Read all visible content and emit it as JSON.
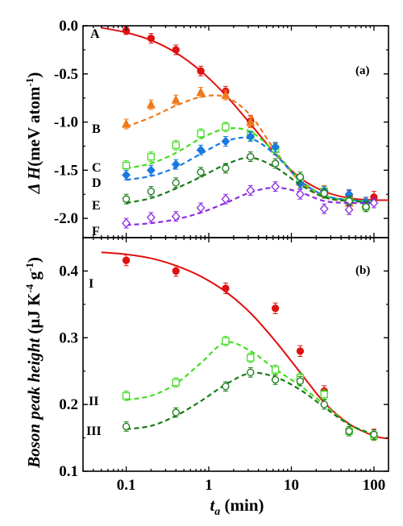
{
  "chart_data": [
    {
      "type": "scatter",
      "panel_label": "(a)",
      "ylabel": {
        "main": "Δ H",
        "unit_pre": "(meV atom",
        "unit_sup": "-1",
        "unit_post": ")"
      },
      "xscale": "log",
      "xlim": [
        0.03,
        150
      ],
      "ylim": [
        -2.2,
        0.0
      ],
      "yticks": [
        0.0,
        -0.5,
        -1.0,
        -1.5,
        -2.0
      ],
      "ytick_labels": [
        "0.0",
        "-0.5",
        "-1.0",
        "-1.5",
        "-2.0"
      ],
      "series": [
        {
          "name": "A",
          "color": "#e01010",
          "marker": "circle",
          "filled": true,
          "line": "solid",
          "x": [
            0.1,
            0.2,
            0.4,
            0.8,
            1.6,
            3.2,
            6.4,
            12.8,
            25,
            50,
            100
          ],
          "y": [
            -0.05,
            -0.13,
            -0.25,
            -0.47,
            -0.68,
            -0.99,
            -1.28,
            -1.6,
            -1.72,
            -1.77,
            -1.78
          ],
          "err": [
            0.04,
            0.05,
            0.05,
            0.05,
            0.05,
            0.06,
            0.06,
            0.06,
            0.06,
            0.06,
            0.06
          ],
          "fit_x": [
            0.05,
            0.1,
            0.2,
            0.4,
            0.8,
            1.6,
            3.2,
            6.4,
            12.8,
            25,
            50,
            100,
            150
          ],
          "fit_y": [
            -0.02,
            -0.07,
            -0.15,
            -0.28,
            -0.47,
            -0.72,
            -1.02,
            -1.33,
            -1.58,
            -1.72,
            -1.79,
            -1.81,
            -1.81
          ]
        },
        {
          "name": "B",
          "color": "#f07818",
          "marker": "triangle",
          "filled": true,
          "line": "dashed",
          "x": [
            0.1,
            0.2,
            0.4,
            0.8,
            1.6,
            3.2,
            6.4,
            12.8,
            25,
            50,
            80
          ],
          "y": [
            -1.02,
            -0.82,
            -0.77,
            -0.69,
            -0.72,
            -1.0,
            -1.28,
            -1.62,
            -1.72,
            -1.84,
            -1.85
          ],
          "err": [
            0.05,
            0.05,
            0.05,
            0.05,
            0.05,
            0.06,
            0.06,
            0.06,
            0.06,
            0.06,
            0.06
          ],
          "fit_x": [
            0.1,
            0.2,
            0.4,
            0.8,
            1.6,
            3.2,
            6.4,
            12.8,
            25,
            50,
            100
          ],
          "fit_y": [
            -1.05,
            -0.95,
            -0.83,
            -0.74,
            -0.74,
            -0.93,
            -1.3,
            -1.62,
            -1.78,
            -1.82,
            -1.83
          ]
        },
        {
          "name": "C",
          "color": "#44dd22",
          "marker": "square",
          "filled": false,
          "line": "dashed",
          "x": [
            0.1,
            0.2,
            0.4,
            0.8,
            1.6,
            3.2,
            6.4,
            12.8,
            25,
            50,
            80
          ],
          "y": [
            -1.45,
            -1.36,
            -1.24,
            -1.12,
            -1.05,
            -1.14,
            -1.28,
            -1.6,
            -1.72,
            -1.82,
            -1.88
          ],
          "err": [
            0.05,
            0.05,
            0.05,
            0.05,
            0.05,
            0.05,
            0.05,
            0.05,
            0.05,
            0.05,
            0.05
          ],
          "fit_x": [
            0.1,
            0.2,
            0.4,
            0.8,
            1.6,
            3.2,
            6.4,
            12.8,
            25,
            50,
            100
          ],
          "fit_y": [
            -1.48,
            -1.43,
            -1.32,
            -1.17,
            -1.07,
            -1.1,
            -1.32,
            -1.6,
            -1.76,
            -1.81,
            -1.82
          ]
        },
        {
          "name": "D",
          "color": "#1a7ae0",
          "marker": "diamond",
          "filled": true,
          "line": "dashed",
          "x": [
            0.1,
            0.2,
            0.4,
            0.8,
            1.6,
            3.2,
            6.4,
            12.8,
            25,
            50,
            80
          ],
          "y": [
            -1.55,
            -1.5,
            -1.44,
            -1.29,
            -1.2,
            -1.15,
            -1.26,
            -1.64,
            -1.72,
            -1.75,
            -1.83
          ],
          "err": [
            0.05,
            0.05,
            0.05,
            0.05,
            0.05,
            0.05,
            0.05,
            0.05,
            0.05,
            0.05,
            0.05
          ],
          "fit_x": [
            0.1,
            0.2,
            0.4,
            0.8,
            1.6,
            3.2,
            6.4,
            12.8,
            25,
            50,
            100
          ],
          "fit_y": [
            -1.6,
            -1.56,
            -1.47,
            -1.33,
            -1.2,
            -1.17,
            -1.34,
            -1.61,
            -1.76,
            -1.81,
            -1.82
          ]
        },
        {
          "name": "E",
          "color": "#177a17",
          "marker": "circle",
          "filled": false,
          "line": "dashed",
          "x": [
            0.1,
            0.2,
            0.4,
            0.8,
            1.6,
            3.2,
            6.4,
            12.8,
            25,
            50,
            80
          ],
          "y": [
            -1.8,
            -1.72,
            -1.63,
            -1.52,
            -1.48,
            -1.36,
            -1.43,
            -1.57,
            -1.74,
            -1.82,
            -1.88
          ],
          "err": [
            0.05,
            0.05,
            0.05,
            0.05,
            0.05,
            0.05,
            0.05,
            0.05,
            0.05,
            0.05,
            0.05
          ],
          "fit_x": [
            0.1,
            0.2,
            0.4,
            0.8,
            1.6,
            3.2,
            6.4,
            12.8,
            25,
            50,
            100
          ],
          "fit_y": [
            -1.84,
            -1.79,
            -1.69,
            -1.57,
            -1.44,
            -1.37,
            -1.47,
            -1.65,
            -1.78,
            -1.82,
            -1.83
          ]
        },
        {
          "name": "F",
          "color": "#8a2be2",
          "marker": "diamond",
          "filled": false,
          "line": "dashed",
          "x": [
            0.1,
            0.2,
            0.4,
            0.8,
            1.6,
            3.2,
            6.4,
            12.8,
            25,
            50,
            100
          ],
          "y": [
            -2.05,
            -1.99,
            -1.98,
            -1.89,
            -1.8,
            -1.71,
            -1.67,
            -1.75,
            -1.9,
            -1.91,
            -1.84
          ],
          "err": [
            0.05,
            0.05,
            0.05,
            0.05,
            0.05,
            0.05,
            0.05,
            0.05,
            0.05,
            0.05,
            0.05
          ],
          "fit_x": [
            0.1,
            0.2,
            0.4,
            0.8,
            1.6,
            3.2,
            6.4,
            12.8,
            25,
            50,
            100
          ],
          "fit_y": [
            -2.07,
            -2.05,
            -2.01,
            -1.94,
            -1.84,
            -1.73,
            -1.68,
            -1.73,
            -1.82,
            -1.84,
            -1.84
          ]
        }
      ]
    },
    {
      "type": "scatter",
      "panel_label": "(b)",
      "ylabel": {
        "main": "Boson peak height",
        "unit_pre": " (μJ K",
        "unit_sup": "-4",
        "unit_mid": " g",
        "unit_sup2": "-1",
        "unit_post": ")"
      },
      "xlabel": {
        "main": "t",
        "sub": "a",
        "unit": " (min)"
      },
      "xscale": "log",
      "xlim": [
        0.03,
        150
      ],
      "ylim": [
        0.1,
        0.45
      ],
      "yticks": [
        0.1,
        0.2,
        0.3,
        0.4
      ],
      "ytick_labels": [
        "0.1",
        "0.2",
        "0.3",
        "0.4"
      ],
      "xticks": [
        0.1,
        1,
        10,
        100
      ],
      "xtick_labels": [
        "0.1",
        "1",
        "10",
        "100"
      ],
      "series": [
        {
          "name": "I",
          "color": "#e01010",
          "marker": "circle",
          "filled": true,
          "line": "solid",
          "x": [
            0.1,
            0.4,
            1.6,
            6.4,
            12.8,
            25,
            100
          ],
          "y": [
            0.416,
            0.4,
            0.374,
            0.344,
            0.28,
            0.22,
            0.155
          ],
          "err": [
            0.008,
            0.008,
            0.008,
            0.008,
            0.008,
            0.008,
            0.008
          ],
          "fit_x": [
            0.05,
            0.1,
            0.2,
            0.4,
            0.8,
            1.6,
            3.2,
            6.4,
            12.8,
            25,
            50,
            100,
            150
          ],
          "fit_y": [
            0.428,
            0.425,
            0.419,
            0.408,
            0.392,
            0.369,
            0.337,
            0.295,
            0.248,
            0.203,
            0.171,
            0.153,
            0.149
          ]
        },
        {
          "name": "II",
          "color": "#44dd22",
          "marker": "square",
          "filled": false,
          "line": "dashed",
          "x": [
            0.1,
            0.4,
            1.6,
            3.2,
            6.4,
            12.8,
            25,
            50,
            100
          ],
          "y": [
            0.213,
            0.233,
            0.295,
            0.27,
            0.252,
            0.24,
            0.215,
            0.16,
            0.153
          ],
          "err": [
            0.007,
            0.007,
            0.007,
            0.007,
            0.007,
            0.007,
            0.007,
            0.007,
            0.007
          ],
          "fit_x": [
            0.1,
            0.2,
            0.4,
            0.8,
            1.6,
            3.2,
            6.4,
            12.8,
            25,
            50,
            100
          ],
          "fit_y": [
            0.207,
            0.213,
            0.231,
            0.262,
            0.293,
            0.28,
            0.253,
            0.228,
            0.2,
            0.17,
            0.154
          ]
        },
        {
          "name": "III",
          "color": "#177a17",
          "marker": "circle",
          "filled": false,
          "line": "dashed",
          "x": [
            0.1,
            0.4,
            1.6,
            3.2,
            6.4,
            12.8,
            25,
            50,
            100
          ],
          "y": [
            0.167,
            0.188,
            0.227,
            0.248,
            0.237,
            0.235,
            0.2,
            0.16,
            0.155
          ],
          "err": [
            0.007,
            0.007,
            0.007,
            0.007,
            0.007,
            0.007,
            0.007,
            0.007,
            0.007
          ],
          "fit_x": [
            0.1,
            0.2,
            0.4,
            0.8,
            1.6,
            3.2,
            6.4,
            12.8,
            25,
            50,
            100
          ],
          "fit_y": [
            0.163,
            0.168,
            0.183,
            0.205,
            0.23,
            0.247,
            0.241,
            0.222,
            0.196,
            0.17,
            0.155
          ]
        }
      ]
    }
  ]
}
